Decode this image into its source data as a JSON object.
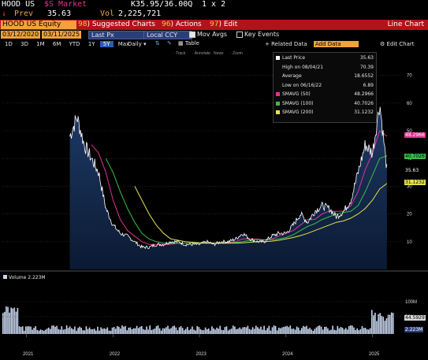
{
  "header": {
    "ticker": "HOOD US",
    "market_label": "$S Market",
    "quote": "K35.95/36.00Q",
    "size": "1 x 2",
    "prev_label": "Prev",
    "prev_value": "35.63",
    "vol_label": "Vol",
    "vol_value": "2,225,721"
  },
  "toolbar": {
    "security": "HOOD US Equity",
    "menus": [
      {
        "num": "98",
        "label": "Suggested Charts"
      },
      {
        "num": "96",
        "label": "Actions"
      },
      {
        "num": "97",
        "label": "Edit"
      }
    ],
    "title": "Line Chart"
  },
  "controls": {
    "start_date": "03/12/2020",
    "end_date": "03/11/2025",
    "field": "Last Px",
    "currency": "Local CCY",
    "mov_avgs_label": "Mov Avgs",
    "key_events_label": "Key Events"
  },
  "periods": [
    "1D",
    "3D",
    "1M",
    "6M",
    "YTD",
    "1Y",
    "5Y",
    "Max"
  ],
  "selected_period": "5Y",
  "frequency": "Daily",
  "table_label": "Table",
  "related_data_label": "Related Data",
  "add_data_label": "Add Data",
  "edit_chart_label": "Edit Chart",
  "tools": [
    "Track",
    "Annotate",
    "News",
    "Zoom"
  ],
  "legend": [
    {
      "label": "Last Price",
      "value": "35.63",
      "color": "#ffffff"
    },
    {
      "label": "High on 08/04/21",
      "value": "70.39",
      "color": ""
    },
    {
      "label": "Average",
      "value": "18.6552",
      "color": ""
    },
    {
      "label": "Low on 06/16/22",
      "value": "6.89",
      "color": ""
    },
    {
      "label": "SMAVG (50)",
      "value": "48.2966",
      "color": "#e0338f"
    },
    {
      "label": "SMAVG (100)",
      "value": "40.7026",
      "color": "#3dbb4a"
    },
    {
      "label": "SMAVG (200)",
      "value": "31.1232",
      "color": "#e6e24a"
    }
  ],
  "price_tags": [
    {
      "value": "48.2966",
      "color": "#e0338f",
      "text_color": "#ffffff"
    },
    {
      "value": "40.7026",
      "color": "#3dbb4a",
      "text_color": "#000000"
    },
    {
      "value": "35.63",
      "color": "#000000",
      "text_color": "#ffffff"
    },
    {
      "value": "31.1232",
      "color": "#e6e24a",
      "text_color": "#000000"
    }
  ],
  "volume": {
    "title": "Volume",
    "value": "2.223M",
    "tags": [
      {
        "value": "44.5929",
        "color": "#d8d8d8",
        "text_color": "#000000"
      },
      {
        "value": "2.223M",
        "color": "#2a3f7a",
        "text_color": "#ffffff"
      }
    ]
  },
  "chart_data": {
    "type": "line",
    "ylim": [
      0,
      75
    ],
    "yticks": [
      10,
      20,
      30,
      40,
      50,
      60,
      70
    ],
    "volume_ticks": [
      "100M",
      "50M"
    ],
    "xticks": [
      "2021",
      "2022",
      "2023",
      "2024",
      "2025"
    ],
    "x": [
      "2021-07",
      "2021-08",
      "2021-09",
      "2021-10",
      "2021-11",
      "2021-12",
      "2022-01",
      "2022-02",
      "2022-03",
      "2022-04",
      "2022-05",
      "2022-06",
      "2022-07",
      "2022-08",
      "2022-09",
      "2022-10",
      "2022-11",
      "2022-12",
      "2023-01",
      "2023-02",
      "2023-03",
      "2023-04",
      "2023-05",
      "2023-06",
      "2023-07",
      "2023-08",
      "2023-09",
      "2023-10",
      "2023-11",
      "2023-12",
      "2024-01",
      "2024-02",
      "2024-03",
      "2024-04",
      "2024-05",
      "2024-06",
      "2024-07",
      "2024-08",
      "2024-09",
      "2024-10",
      "2024-11",
      "2024-12",
      "2025-01",
      "2025-02",
      "2025-03"
    ],
    "series": [
      {
        "name": "Last Price",
        "color": "#ffffff",
        "values": [
          48,
          55,
          45,
          40,
          35,
          22,
          16,
          13,
          12,
          10,
          8,
          8,
          9,
          9,
          10,
          10,
          9,
          9,
          9,
          10,
          9,
          10,
          10,
          11,
          13,
          11,
          10,
          10,
          12,
          13,
          13,
          16,
          20,
          17,
          21,
          23,
          22,
          19,
          21,
          25,
          35,
          45,
          42,
          60,
          36
        ]
      },
      {
        "name": "SMAVG (50)",
        "color": "#e0338f",
        "values": [
          null,
          null,
          null,
          45,
          42,
          35,
          25,
          18,
          14,
          12,
          10,
          9,
          9,
          9,
          9,
          9.5,
          9.5,
          9.5,
          9.5,
          9.5,
          9.5,
          9.5,
          9.8,
          10,
          11,
          11,
          11,
          10.5,
          11,
          12,
          13,
          14,
          16,
          18,
          18,
          20,
          21,
          21,
          21,
          23,
          28,
          36,
          42,
          50,
          48
        ]
      },
      {
        "name": "SMAVG (100)",
        "color": "#3dbb4a",
        "values": [
          null,
          null,
          null,
          null,
          null,
          40,
          35,
          28,
          22,
          17,
          13,
          11,
          10,
          9.5,
          9.5,
          9.5,
          9.5,
          9.5,
          9.5,
          9.5,
          9.5,
          9.5,
          9.5,
          9.7,
          10,
          10.5,
          10.7,
          10.7,
          10.7,
          11,
          11.5,
          12.5,
          14,
          15.5,
          16.5,
          18,
          19,
          20,
          20.5,
          21,
          23,
          28,
          34,
          40,
          41
        ]
      },
      {
        "name": "SMAVG (200)",
        "color": "#e6e24a",
        "values": [
          null,
          null,
          null,
          null,
          null,
          null,
          null,
          null,
          null,
          30,
          25,
          20,
          16,
          13,
          11,
          10.5,
          10,
          9.8,
          9.6,
          9.5,
          9.5,
          9.5,
          9.5,
          9.5,
          9.6,
          9.8,
          10,
          10,
          10.2,
          10.5,
          11,
          11.5,
          12.2,
          13,
          14,
          15,
          16,
          17,
          17.5,
          18.5,
          20,
          22,
          25,
          29,
          31
        ]
      }
    ]
  }
}
